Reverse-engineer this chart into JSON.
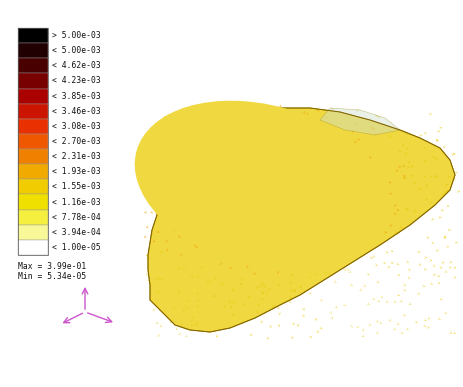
{
  "colorbar_labels": [
    "> 5.00e-03",
    "< 5.00e-03",
    "< 4.62e-03",
    "< 4.23e-03",
    "< 3.85e-03",
    "< 3.46e-03",
    "< 3.08e-03",
    "< 2.70e-03",
    "< 2.31e-03",
    "< 1.93e-03",
    "< 1.55e-03",
    "< 1.16e-03",
    "< 7.78e-04",
    "< 3.94e-04",
    "< 1.00e-05"
  ],
  "colorbar_colors": [
    "#000000",
    "#200000",
    "#480000",
    "#780000",
    "#aa0000",
    "#cc1500",
    "#e83000",
    "#f05800",
    "#f08000",
    "#f0aa00",
    "#f0cc00",
    "#f0e000",
    "#f5f040",
    "#f8f898",
    "#ffffff"
  ],
  "max_label": "Max = 3.99e-01",
  "min_label": "Min = 5.34e-05",
  "background_color": "#ffffff",
  "figure_width": 4.63,
  "figure_height": 3.87,
  "dpi": 100,
  "text_fontsize": 5.8,
  "label_color": "#111111"
}
